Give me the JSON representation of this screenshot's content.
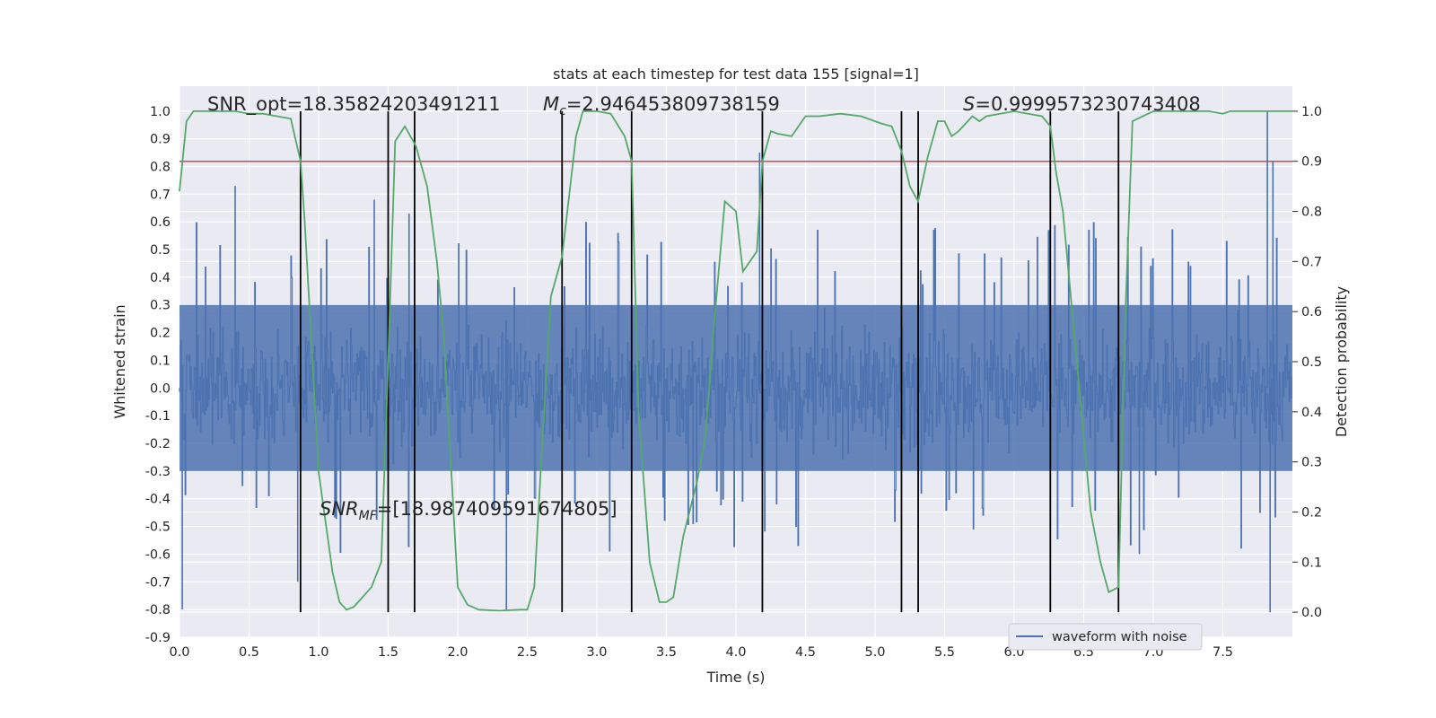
{
  "chart_data": {
    "type": "line",
    "title": "stats at each timestep for test data 155 [signal=1]",
    "xlabel": "Time (s)",
    "ylabel": "Whitened strain",
    "y2label": "Detection probability",
    "xlim": [
      0,
      8
    ],
    "ylim": [
      -0.9,
      1.09
    ],
    "y2lim": [
      -0.05,
      1.05
    ],
    "xticks": [
      "0.0",
      "0.5",
      "1.0",
      "1.5",
      "2.0",
      "2.5",
      "3.0",
      "3.5",
      "4.0",
      "4.5",
      "5.0",
      "5.5",
      "6.0",
      "6.5",
      "7.0",
      "7.5"
    ],
    "yticks": [
      "1.0",
      "0.9",
      "0.8",
      "0.7",
      "0.6",
      "0.5",
      "0.4",
      "0.3",
      "0.2",
      "0.1",
      "0.0",
      "-0.1",
      "-0.2",
      "-0.3",
      "-0.4",
      "-0.5",
      "-0.6",
      "-0.7",
      "-0.8",
      "-0.9"
    ],
    "y2ticks": [
      "1.0",
      "0.9",
      "0.8",
      "0.7",
      "0.6",
      "0.5",
      "0.4",
      "0.3",
      "0.2",
      "0.1",
      "0.0"
    ],
    "grid": true,
    "legend_position": "bottom-right",
    "annotations": {
      "snr_opt": "SNR_opt=18.35824203491211",
      "mc_symbol": "M",
      "mc_sub": "c",
      "mc_value": "=2.946453809738159",
      "s_symbol": "S",
      "s_value": "=0.9999573230743408",
      "snr_mf_symbol": "SNR",
      "snr_mf_sub": "MF",
      "snr_mf_value": "=[18.987409591674805]"
    },
    "threshold": 0.9,
    "vertical_lines": [
      0.87,
      1.5,
      1.69,
      2.75,
      3.25,
      4.19,
      5.19,
      5.31,
      6.26,
      6.75
    ],
    "series": [
      {
        "name": "waveform with noise",
        "color": "#4c72b0",
        "style": "noise band, approx. +/-0.45 with spikes to 1.0 and -0.85",
        "spikes": [
          {
            "x": 0.02,
            "y": -0.8
          },
          {
            "x": 0.4,
            "y": 0.73
          },
          {
            "x": 0.85,
            "y": -0.7
          },
          {
            "x": 1.4,
            "y": 0.68
          },
          {
            "x": 1.65,
            "y": 0.63
          },
          {
            "x": 2.35,
            "y": -0.8
          },
          {
            "x": 4.17,
            "y": 0.85
          },
          {
            "x": 6.9,
            "y": -0.6
          },
          {
            "x": 7.82,
            "y": 1.0
          },
          {
            "x": 7.84,
            "y": -0.81
          },
          {
            "x": 7.86,
            "y": 0.82
          }
        ]
      },
      {
        "name": "",
        "color": "#55a868",
        "axis": "right",
        "x": [
          0.0,
          0.05,
          0.1,
          0.2,
          0.3,
          0.4,
          0.5,
          0.6,
          0.7,
          0.8,
          0.87,
          0.9,
          1.0,
          1.1,
          1.15,
          1.2,
          1.25,
          1.3,
          1.38,
          1.45,
          1.5,
          1.55,
          1.62,
          1.7,
          1.78,
          1.85,
          1.9,
          2.0,
          2.07,
          2.15,
          2.3,
          2.45,
          2.5,
          2.55,
          2.6,
          2.67,
          2.75,
          2.85,
          2.9,
          3.0,
          3.1,
          3.2,
          3.25,
          3.3,
          3.38,
          3.45,
          3.5,
          3.55,
          3.62,
          3.72,
          3.78,
          3.85,
          3.92,
          4.0,
          4.05,
          4.1,
          4.15,
          4.19,
          4.25,
          4.3,
          4.4,
          4.5,
          4.6,
          4.75,
          4.9,
          5.05,
          5.12,
          5.19,
          5.25,
          5.31,
          5.38,
          5.45,
          5.5,
          5.55,
          5.6,
          5.7,
          5.75,
          5.8,
          6.0,
          6.1,
          6.2,
          6.26,
          6.3,
          6.35,
          6.45,
          6.55,
          6.62,
          6.68,
          6.75,
          6.8,
          6.85,
          7.0,
          7.1,
          7.2,
          7.4,
          7.5,
          7.55,
          7.65,
          7.75,
          8.0
        ],
        "y": [
          0.84,
          0.98,
          1.0,
          1.0,
          1.0,
          1.0,
          0.995,
          0.995,
          0.99,
          0.985,
          0.9,
          0.78,
          0.28,
          0.08,
          0.02,
          0.005,
          0.01,
          0.025,
          0.05,
          0.1,
          0.5,
          0.94,
          0.97,
          0.93,
          0.85,
          0.7,
          0.55,
          0.05,
          0.015,
          0.005,
          0.003,
          0.005,
          0.005,
          0.05,
          0.3,
          0.63,
          0.71,
          0.95,
          1.0,
          1.0,
          0.995,
          0.95,
          0.9,
          0.4,
          0.1,
          0.02,
          0.02,
          0.03,
          0.15,
          0.26,
          0.35,
          0.6,
          0.82,
          0.8,
          0.68,
          0.7,
          0.72,
          0.9,
          0.96,
          0.955,
          0.95,
          0.99,
          0.99,
          0.995,
          0.99,
          0.975,
          0.97,
          0.92,
          0.85,
          0.82,
          0.91,
          0.98,
          0.98,
          0.95,
          0.96,
          0.99,
          0.98,
          0.99,
          1.0,
          0.995,
          0.99,
          0.97,
          0.88,
          0.8,
          0.5,
          0.2,
          0.1,
          0.04,
          0.05,
          0.6,
          0.98,
          1.0,
          1.0,
          1.0,
          1.0,
          0.995,
          1.0,
          1.0,
          1.0,
          1.0
        ]
      },
      {
        "name": "",
        "color": "#c44e52",
        "axis": "right",
        "style": "horizontal threshold line"
      }
    ]
  }
}
